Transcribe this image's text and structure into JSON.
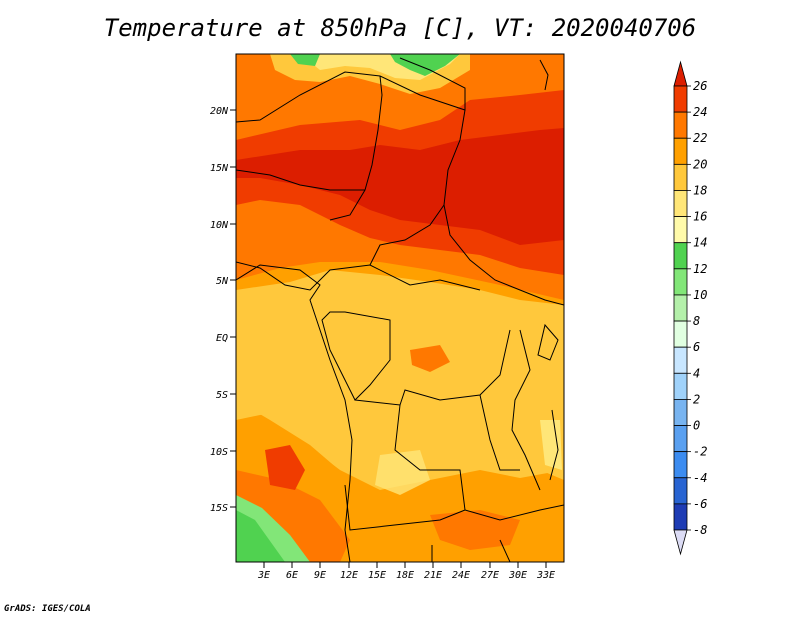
{
  "title": "Temperature at 850hPa [C], VT: 2020040706",
  "credit": "GrADS: IGES/COLA",
  "map": {
    "lat_ticks": [
      "20N",
      "15N",
      "10N",
      "5N",
      "EQ",
      "5S",
      "10S",
      "15S"
    ],
    "lon_ticks": [
      "3E",
      "6E",
      "9E",
      "12E",
      "15E",
      "18E",
      "21E",
      "24E",
      "27E",
      "30E",
      "33E"
    ]
  },
  "colorbar": {
    "labels": [
      "26",
      "24",
      "22",
      "20",
      "18",
      "16",
      "14",
      "12",
      "10",
      "8",
      "6",
      "4",
      "2",
      "0",
      "-2",
      "-4",
      "-6",
      "-8"
    ],
    "colors": [
      "#1a0a6e",
      "#1e3cb4",
      "#2864d2",
      "#3c8cf0",
      "#5aa0f0",
      "#78b4f0",
      "#a0d2fa",
      "#c8e6ff",
      "#e1ffe1",
      "#b4f0aa",
      "#82e678",
      "#50d250",
      "#fffaaa",
      "#ffe678",
      "#ffc83c",
      "#ffa000",
      "#ff7800",
      "#f03c00",
      "#dc1e00"
    ]
  }
}
